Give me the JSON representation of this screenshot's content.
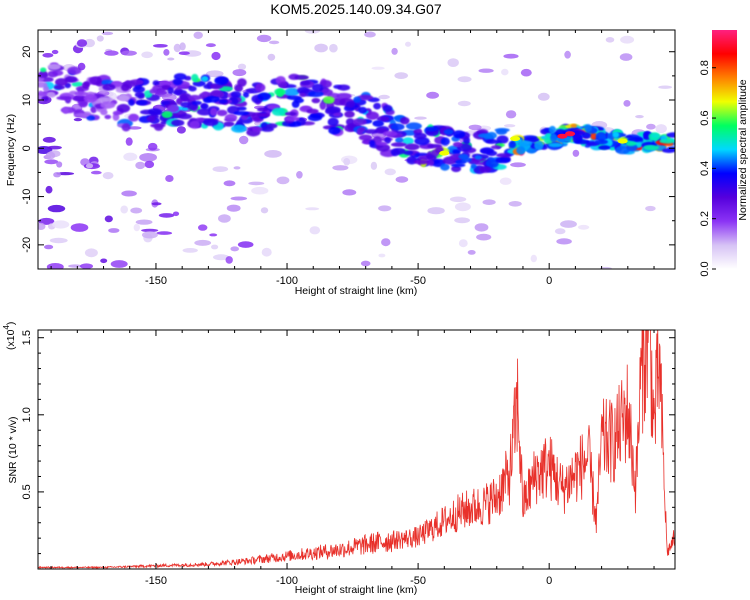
{
  "title": "KOM5.2025.140.09.34.G07",
  "chart_data": [
    {
      "type": "heatmap",
      "xlabel": "Height of straight line (km)",
      "ylabel": "Frequency (Hz)",
      "xlim": [
        -195,
        48
      ],
      "ylim": [
        -25,
        24.5
      ],
      "xticks": [
        -150,
        -100,
        -50,
        0
      ],
      "yticks": [
        20,
        10,
        0,
        -10,
        -20
      ],
      "colorbar": {
        "label": "Normalized spectral amplitude",
        "range": [
          0.0,
          0.95
        ],
        "ticks": [
          0.0,
          0.2,
          0.4,
          0.6,
          0.8
        ],
        "colormap": [
          "#ffffff",
          "#d6c2f5",
          "#8b33f5",
          "#5500dd",
          "#0000ff",
          "#00d8ff",
          "#00ff60",
          "#f0ff00",
          "#ff8000",
          "#ff0000",
          "#ff2080"
        ]
      },
      "ridge": [
        {
          "x": -190,
          "y": 13
        },
        {
          "x": -180,
          "y": 11
        },
        {
          "x": -165,
          "y": 9
        },
        {
          "x": -150,
          "y": 9
        },
        {
          "x": -140,
          "y": 10
        },
        {
          "x": -130,
          "y": 9.5
        },
        {
          "x": -120,
          "y": 9
        },
        {
          "x": -110,
          "y": 8
        },
        {
          "x": -100,
          "y": 10
        },
        {
          "x": -90,
          "y": 10
        },
        {
          "x": -80,
          "y": 8
        },
        {
          "x": -70,
          "y": 6
        },
        {
          "x": -60,
          "y": 3
        },
        {
          "x": -50,
          "y": 1
        },
        {
          "x": -40,
          "y": 0
        },
        {
          "x": -30,
          "y": -1
        },
        {
          "x": -20,
          "y": 0
        },
        {
          "x": -10,
          "y": 1
        },
        {
          "x": 0,
          "y": 2
        },
        {
          "x": 10,
          "y": 3
        },
        {
          "x": 20,
          "y": 2
        },
        {
          "x": 30,
          "y": 1
        },
        {
          "x": 40,
          "y": 1.5
        },
        {
          "x": 48,
          "y": 1
        }
      ]
    },
    {
      "type": "line",
      "xlabel": "Height of straight line (km)",
      "ylabel": "SNR (10 * v/v)",
      "yscale_label": "(x10",
      "yscale_exp": "4",
      "xlim": [
        -195,
        48
      ],
      "ylim": [
        0,
        1.55
      ],
      "xticks": [
        -150,
        -100,
        -50,
        0
      ],
      "yticks": [
        0.5,
        1.0,
        1.5
      ],
      "line_color": "#e8302a",
      "series": [
        {
          "x": [
            -195,
            -170,
            -150,
            -130,
            -115,
            -100,
            -90,
            -80,
            -70,
            -60,
            -50,
            -40,
            -35,
            -30,
            -25,
            -20,
            -15,
            -12,
            -10,
            -5,
            0,
            5,
            10,
            15,
            18,
            20,
            25,
            30,
            33,
            35,
            38,
            40,
            42,
            45,
            48
          ],
          "values": [
            0.01,
            0.01,
            0.02,
            0.03,
            0.05,
            0.08,
            0.1,
            0.12,
            0.15,
            0.18,
            0.2,
            0.3,
            0.35,
            0.38,
            0.4,
            0.45,
            0.6,
            1.05,
            0.4,
            0.6,
            0.65,
            0.5,
            0.6,
            0.7,
            0.3,
            0.8,
            0.8,
            1.0,
            0.5,
            1.2,
            1.55,
            0.9,
            1.3,
            0.1,
            0.2
          ]
        }
      ]
    }
  ]
}
